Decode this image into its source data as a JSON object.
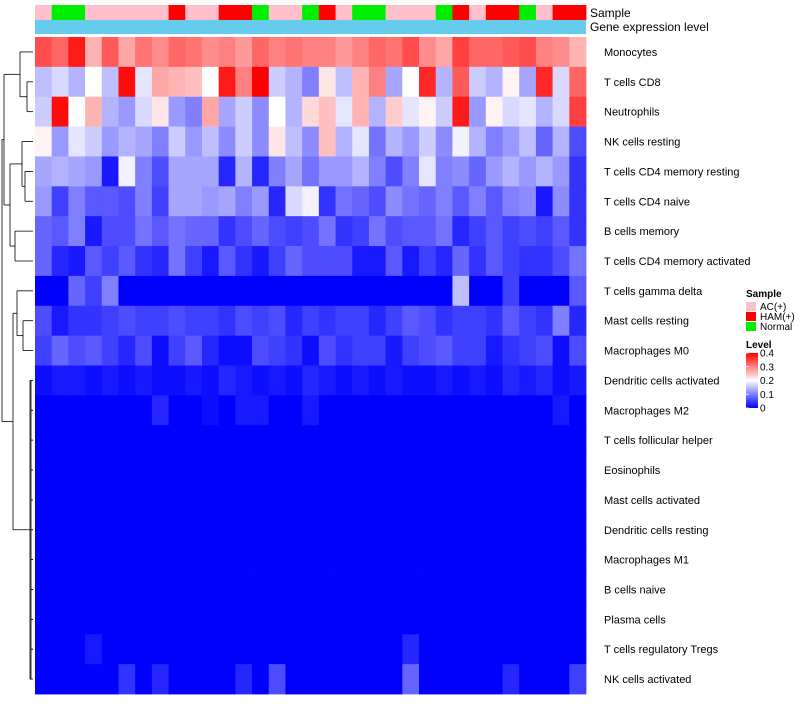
{
  "chart_data": {
    "type": "heatmap",
    "annotation_labels": {
      "sample": "Sample",
      "expression": "Gene expression level"
    },
    "sample_groups": [
      "AC(+)",
      "Normal",
      "Normal",
      "AC(+)",
      "AC(+)",
      "AC(+)",
      "AC(+)",
      "AC(+)",
      "HAM(+)",
      "AC(+)",
      "AC(+)",
      "HAM(+)",
      "HAM(+)",
      "Normal",
      "AC(+)",
      "AC(+)",
      "Normal",
      "HAM(+)",
      "AC(+)",
      "Normal",
      "Normal",
      "AC(+)",
      "AC(+)",
      "AC(+)",
      "Normal",
      "HAM(+)",
      "AC(+)",
      "HAM(+)",
      "HAM(+)",
      "Normal",
      "AC(+)",
      "HAM(+)",
      "HAM(+)"
    ],
    "rows": [
      {
        "name": "Monocytes",
        "values": [
          0.34,
          0.32,
          0.38,
          0.26,
          0.33,
          0.27,
          0.31,
          0.29,
          0.32,
          0.31,
          0.29,
          0.3,
          0.28,
          0.32,
          0.3,
          0.31,
          0.3,
          0.3,
          0.28,
          0.3,
          0.32,
          0.31,
          0.34,
          0.29,
          0.27,
          0.35,
          0.32,
          0.32,
          0.33,
          0.34,
          0.3,
          0.29,
          0.26
        ]
      },
      {
        "name": "T cells CD8",
        "values": [
          0.15,
          0.17,
          0.14,
          0.2,
          0.15,
          0.39,
          0.18,
          0.27,
          0.26,
          0.25,
          0.2,
          0.38,
          0.3,
          0.4,
          0.16,
          0.14,
          0.1,
          0.22,
          0.15,
          0.26,
          0.3,
          0.13,
          0.2,
          0.37,
          0.14,
          0.33,
          0.16,
          0.14,
          0.21,
          0.13,
          0.37,
          0.17,
          0.32
        ]
      },
      {
        "name": "Neutrophils",
        "values": [
          0.16,
          0.39,
          0.2,
          0.26,
          0.14,
          0.12,
          0.17,
          0.22,
          0.12,
          0.1,
          0.27,
          0.13,
          0.16,
          0.11,
          0.2,
          0.14,
          0.23,
          0.25,
          0.18,
          0.26,
          0.14,
          0.24,
          0.18,
          0.21,
          0.16,
          0.38,
          0.12,
          0.21,
          0.17,
          0.18,
          0.14,
          0.17,
          0.35
        ]
      },
      {
        "name": "NK cells resting",
        "values": [
          0.21,
          0.12,
          0.18,
          0.16,
          0.12,
          0.14,
          0.13,
          0.1,
          0.16,
          0.12,
          0.15,
          0.11,
          0.16,
          0.11,
          0.22,
          0.15,
          0.11,
          0.25,
          0.14,
          0.18,
          0.09,
          0.14,
          0.12,
          0.16,
          0.11,
          0.19,
          0.14,
          0.1,
          0.12,
          0.15,
          0.08,
          0.14,
          0.06
        ]
      },
      {
        "name": "T cells CD4 memory resting",
        "values": [
          0.13,
          0.14,
          0.13,
          0.12,
          0.02,
          0.19,
          0.1,
          0.06,
          0.13,
          0.13,
          0.13,
          0.03,
          0.14,
          0.03,
          0.1,
          0.13,
          0.09,
          0.12,
          0.12,
          0.14,
          0.1,
          0.06,
          0.1,
          0.18,
          0.1,
          0.11,
          0.08,
          0.12,
          0.14,
          0.12,
          0.14,
          0.12,
          0.04
        ]
      },
      {
        "name": "T cells CD4 naive",
        "values": [
          0.12,
          0.05,
          0.1,
          0.07,
          0.07,
          0.06,
          0.1,
          0.05,
          0.13,
          0.13,
          0.12,
          0.13,
          0.1,
          0.12,
          0.03,
          0.17,
          0.19,
          0.04,
          0.09,
          0.08,
          0.06,
          0.11,
          0.09,
          0.08,
          0.1,
          0.07,
          0.1,
          0.07,
          0.1,
          0.11,
          0.02,
          0.11,
          0.04
        ]
      },
      {
        "name": "B cells memory",
        "values": [
          0.08,
          0.07,
          0.1,
          0.02,
          0.06,
          0.06,
          0.09,
          0.07,
          0.09,
          0.08,
          0.08,
          0.04,
          0.06,
          0.08,
          0.06,
          0.05,
          0.06,
          0.09,
          0.04,
          0.05,
          0.09,
          0.06,
          0.07,
          0.07,
          0.09,
          0.03,
          0.05,
          0.07,
          0.05,
          0.06,
          0.05,
          0.07,
          0.04
        ]
      },
      {
        "name": "T cells CD4 memory activated",
        "values": [
          0.08,
          0.03,
          0.02,
          0.07,
          0.05,
          0.07,
          0.04,
          0.03,
          0.09,
          0.05,
          0.02,
          0.07,
          0.04,
          0.02,
          0.05,
          0.08,
          0.06,
          0.06,
          0.06,
          0.02,
          0.02,
          0.07,
          0.02,
          0.05,
          0.03,
          0.08,
          0.04,
          0.07,
          0.05,
          0.04,
          0.04,
          0.06,
          0.09
        ]
      },
      {
        "name": "T cells gamma delta",
        "values": [
          0.0,
          0.0,
          0.08,
          0.05,
          0.1,
          0.0,
          0.0,
          0.0,
          0.0,
          0.0,
          0.0,
          0.0,
          0.0,
          0.0,
          0.0,
          0.0,
          0.0,
          0.0,
          0.0,
          0.0,
          0.0,
          0.0,
          0.0,
          0.0,
          0.0,
          0.15,
          0.0,
          0.0,
          0.05,
          0.0,
          0.0,
          0.0,
          0.07
        ]
      },
      {
        "name": "Mast cells resting",
        "values": [
          0.06,
          0.02,
          0.04,
          0.04,
          0.05,
          0.06,
          0.05,
          0.05,
          0.06,
          0.05,
          0.05,
          0.04,
          0.06,
          0.05,
          0.06,
          0.03,
          0.05,
          0.04,
          0.05,
          0.05,
          0.03,
          0.05,
          0.07,
          0.06,
          0.04,
          0.05,
          0.05,
          0.04,
          0.07,
          0.05,
          0.04,
          0.1,
          0.03
        ]
      },
      {
        "name": "Macrophages M0",
        "values": [
          0.05,
          0.08,
          0.06,
          0.07,
          0.05,
          0.03,
          0.06,
          0.01,
          0.05,
          0.07,
          0.03,
          0.01,
          0.01,
          0.06,
          0.05,
          0.04,
          0.01,
          0.06,
          0.04,
          0.05,
          0.05,
          0.02,
          0.05,
          0.06,
          0.07,
          0.05,
          0.05,
          0.02,
          0.04,
          0.05,
          0.06,
          0.01,
          0.06
        ]
      },
      {
        "name": "Dendritic cells activated",
        "values": [
          0.01,
          0.02,
          0.02,
          0.01,
          0.02,
          0.01,
          0.02,
          0.01,
          0.01,
          0.02,
          0.01,
          0.03,
          0.02,
          0.01,
          0.02,
          0.01,
          0.03,
          0.02,
          0.01,
          0.02,
          0.01,
          0.02,
          0.01,
          0.01,
          0.02,
          0.01,
          0.02,
          0.01,
          0.03,
          0.02,
          0.03,
          0.01,
          0.02
        ]
      },
      {
        "name": "Macrophages M2",
        "values": [
          0.0,
          0.0,
          0.0,
          0.0,
          0.0,
          0.0,
          0.0,
          0.03,
          0.0,
          0.0,
          0.01,
          0.0,
          0.02,
          0.02,
          0.0,
          0.0,
          0.02,
          0.0,
          0.0,
          0.0,
          0.0,
          0.0,
          0.0,
          0.0,
          0.0,
          0.0,
          0.0,
          0.0,
          0.0,
          0.0,
          0.0,
          0.02,
          0.0
        ]
      },
      {
        "name": "T cells follicular helper",
        "values": [
          0,
          0,
          0,
          0,
          0,
          0,
          0,
          0,
          0,
          0,
          0,
          0,
          0,
          0,
          0,
          0,
          0,
          0,
          0,
          0,
          0,
          0,
          0,
          0,
          0,
          0,
          0,
          0,
          0,
          0,
          0,
          0,
          0
        ]
      },
      {
        "name": "Eosinophils",
        "values": [
          0,
          0,
          0,
          0,
          0,
          0,
          0,
          0,
          0,
          0,
          0,
          0,
          0,
          0,
          0,
          0,
          0,
          0,
          0,
          0,
          0,
          0,
          0,
          0,
          0,
          0,
          0,
          0,
          0,
          0,
          0,
          0,
          0
        ]
      },
      {
        "name": "Mast cells activated",
        "values": [
          0,
          0,
          0,
          0,
          0,
          0,
          0,
          0,
          0,
          0,
          0,
          0,
          0,
          0,
          0,
          0,
          0,
          0,
          0,
          0,
          0,
          0,
          0,
          0,
          0,
          0,
          0,
          0,
          0,
          0,
          0,
          0,
          0
        ]
      },
      {
        "name": "Dendritic cells resting",
        "values": [
          0,
          0,
          0,
          0,
          0,
          0,
          0,
          0,
          0,
          0,
          0,
          0,
          0,
          0,
          0,
          0,
          0,
          0,
          0,
          0,
          0,
          0,
          0,
          0,
          0,
          0,
          0,
          0,
          0,
          0,
          0,
          0,
          0
        ]
      },
      {
        "name": "Macrophages M1",
        "values": [
          0,
          0,
          0,
          0,
          0,
          0,
          0,
          0,
          0,
          0,
          0,
          0,
          0,
          0,
          0,
          0,
          0,
          0,
          0,
          0,
          0,
          0,
          0,
          0,
          0,
          0,
          0,
          0,
          0,
          0,
          0,
          0,
          0
        ]
      },
      {
        "name": "B cells naive",
        "values": [
          0,
          0,
          0,
          0,
          0,
          0,
          0,
          0,
          0,
          0,
          0,
          0,
          0,
          0,
          0,
          0,
          0,
          0,
          0,
          0,
          0,
          0,
          0,
          0,
          0,
          0,
          0,
          0,
          0,
          0,
          0,
          0,
          0
        ]
      },
      {
        "name": "Plasma cells",
        "values": [
          0,
          0,
          0,
          0,
          0,
          0,
          0,
          0,
          0,
          0,
          0,
          0,
          0,
          0,
          0,
          0,
          0,
          0,
          0,
          0,
          0,
          0,
          0,
          0,
          0,
          0,
          0,
          0,
          0,
          0,
          0,
          0,
          0
        ]
      },
      {
        "name": "T cells regulatory  Tregs",
        "values": [
          0,
          0,
          0,
          0.02,
          0,
          0,
          0,
          0,
          0,
          0,
          0,
          0,
          0,
          0,
          0,
          0,
          0,
          0,
          0,
          0,
          0,
          0,
          0.03,
          0,
          0,
          0,
          0,
          0,
          0,
          0,
          0,
          0,
          0
        ]
      },
      {
        "name": "NK cells activated",
        "values": [
          0,
          0,
          0,
          0,
          0,
          0.04,
          0,
          0.03,
          0,
          0,
          0,
          0,
          0.03,
          0,
          0.06,
          0,
          0,
          0,
          0,
          0,
          0,
          0,
          0.08,
          0,
          0,
          0,
          0,
          0,
          0.03,
          0,
          0,
          0,
          0.05
        ]
      }
    ],
    "legend": {
      "sample_title": "Sample",
      "sample_entries": [
        {
          "label": "AC(+)",
          "color": "#ffc0cb"
        },
        {
          "label": "HAM(+)",
          "color": "#ff0000"
        },
        {
          "label": "Normal",
          "color": "#00ee00"
        }
      ],
      "level_title": "Level",
      "level_ticks": [
        "0.4",
        "0.3",
        "0.2",
        "0.1",
        "0"
      ],
      "range": [
        0,
        0.4
      ]
    }
  },
  "colors": {
    "low": "#0000ff",
    "mid": "#ffffff",
    "high": "#ff0000",
    "expression_bar": "#66ccee"
  }
}
